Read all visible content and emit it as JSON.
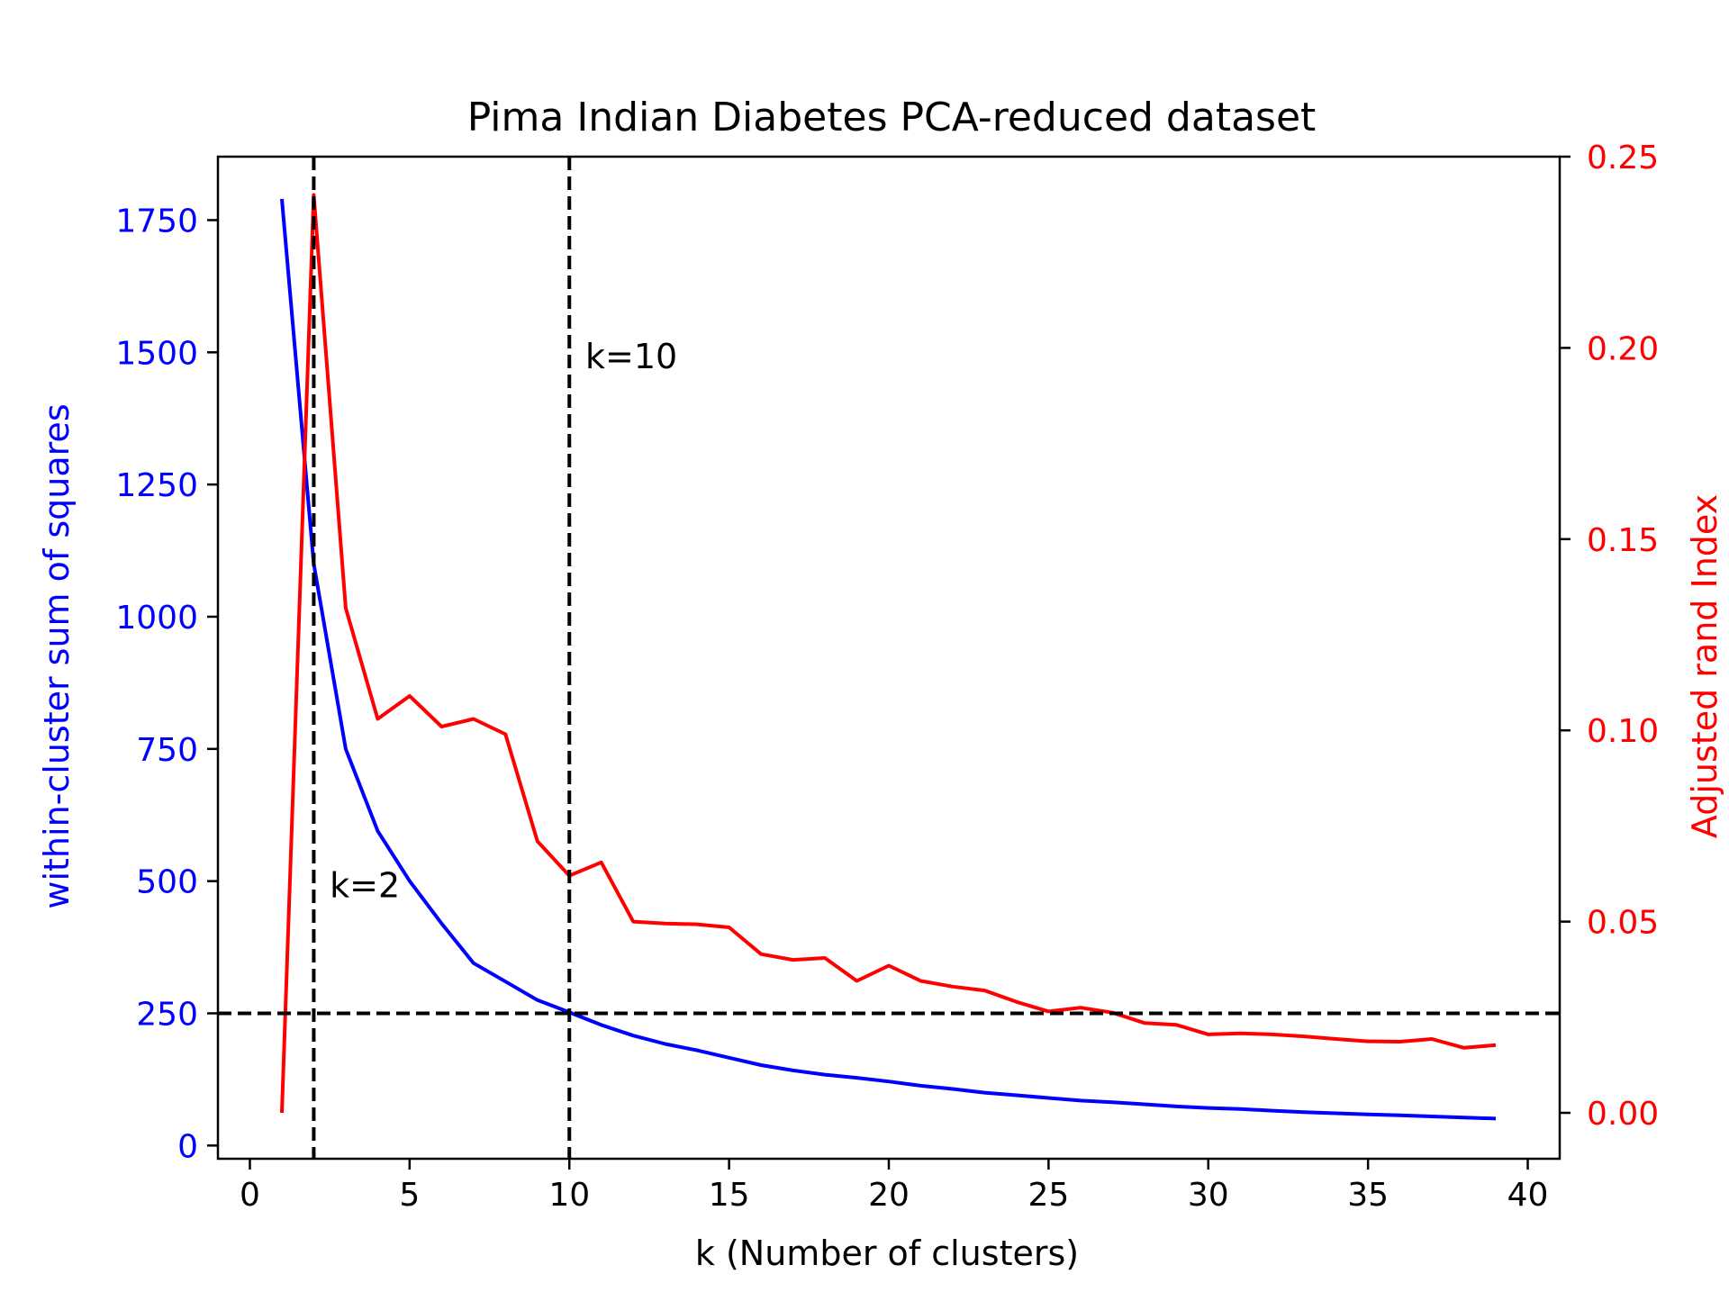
{
  "chart_data": {
    "type": "line",
    "title": "Pima Indian Diabetes PCA-reduced dataset",
    "xlabel": "k (Number of clusters)",
    "ylabel_left": "within-cluster sum of squares",
    "ylabel_right": "Adjusted rand Index",
    "xlim": [
      -1,
      41
    ],
    "ylim_left": [
      -25,
      1870
    ],
    "ylim_right": [
      -0.012,
      0.25
    ],
    "x_ticks": [
      0,
      5,
      10,
      15,
      20,
      25,
      30,
      35,
      40
    ],
    "y_ticks_left": [
      0,
      250,
      500,
      750,
      1000,
      1250,
      1500,
      1750
    ],
    "y_ticks_right": [
      "0.00",
      "0.05",
      "0.10",
      "0.15",
      "0.20",
      "0.25"
    ],
    "colors": {
      "left_series": "#0000ff",
      "right_series": "#ff0000",
      "reference": "#000000"
    },
    "series": [
      {
        "axis": "left",
        "color": "#0000ff",
        "x": [
          1,
          2,
          3,
          4,
          5,
          6,
          7,
          8,
          9,
          10,
          11,
          12,
          13,
          14,
          15,
          16,
          17,
          18,
          19,
          20,
          21,
          22,
          23,
          24,
          25,
          26,
          27,
          28,
          29,
          30,
          31,
          32,
          33,
          34,
          35,
          36,
          37,
          38,
          39
        ],
        "values": [
          1790,
          1100,
          750,
          595,
          500,
          420,
          345,
          310,
          275,
          252,
          228,
          208,
          192,
          180,
          166,
          152,
          142,
          134,
          128,
          121,
          113,
          107,
          100,
          95,
          90,
          85,
          82,
          78,
          74,
          71,
          69,
          66,
          63,
          61,
          59,
          57,
          55,
          53,
          51
        ]
      },
      {
        "axis": "right",
        "color": "#ff0000",
        "x": [
          1,
          2,
          3,
          4,
          5,
          6,
          7,
          8,
          9,
          10,
          11,
          12,
          13,
          14,
          15,
          16,
          17,
          18,
          19,
          20,
          21,
          22,
          23,
          24,
          25,
          26,
          27,
          28,
          29,
          30,
          31,
          32,
          33,
          34,
          35,
          36,
          37,
          38,
          39
        ],
        "values": [
          0.0,
          0.24,
          0.132,
          0.103,
          0.109,
          0.101,
          0.103,
          0.099,
          0.071,
          0.062,
          0.0655,
          0.05,
          0.0495,
          0.0493,
          0.0485,
          0.0415,
          0.04,
          0.0405,
          0.0345,
          0.0385,
          0.0345,
          0.033,
          0.032,
          0.029,
          0.0265,
          0.0275,
          0.0262,
          0.0235,
          0.023,
          0.0205,
          0.0208,
          0.0205,
          0.02,
          0.0193,
          0.0187,
          0.0186,
          0.0193,
          0.017,
          0.0177
        ]
      }
    ],
    "reference_lines": [
      {
        "orientation": "vertical",
        "x": 2
      },
      {
        "orientation": "vertical",
        "x": 10
      },
      {
        "orientation": "horizontal",
        "y": 250
      }
    ],
    "annotations": [
      {
        "text": "k=2",
        "x": 2.5,
        "y": 470
      },
      {
        "text": "k=10",
        "x": 10.5,
        "y": 1470
      }
    ]
  }
}
